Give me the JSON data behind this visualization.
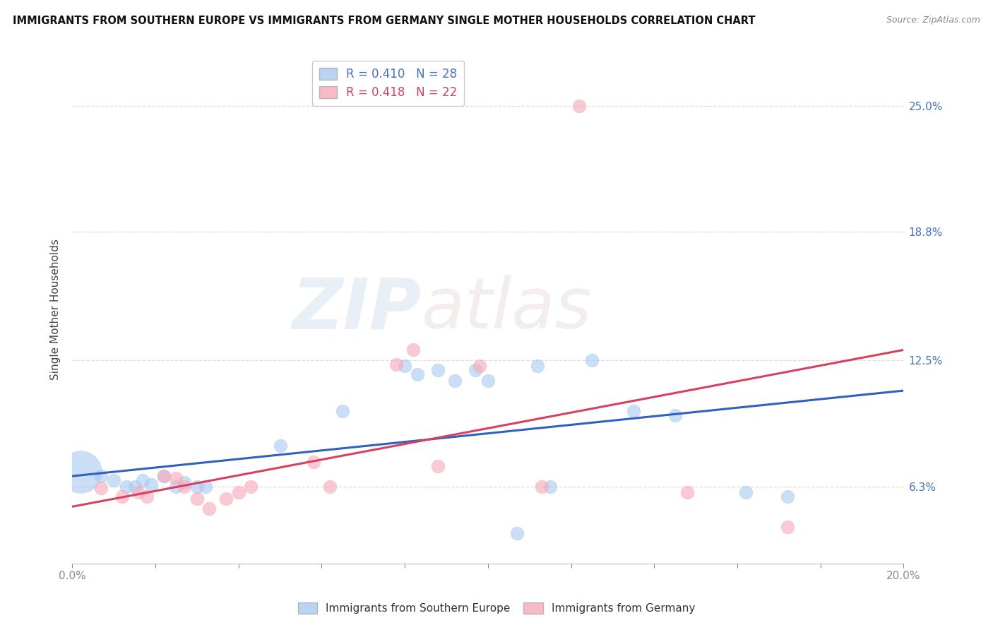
{
  "title": "IMMIGRANTS FROM SOUTHERN EUROPE VS IMMIGRANTS FROM GERMANY SINGLE MOTHER HOUSEHOLDS CORRELATION CHART",
  "source": "Source: ZipAtlas.com",
  "ylabel": "Single Mother Households",
  "ytick_labels": [
    "6.3%",
    "12.5%",
    "18.8%",
    "25.0%"
  ],
  "ytick_values": [
    0.063,
    0.125,
    0.188,
    0.25
  ],
  "xlim": [
    0.0,
    0.2
  ],
  "ylim": [
    0.025,
    0.275
  ],
  "r_blue": 0.41,
  "n_blue": 28,
  "r_pink": 0.418,
  "n_pink": 22,
  "blue_color": "#A8C8F0",
  "pink_color": "#F8A8B8",
  "line_blue": "#3060C0",
  "line_pink": "#D84060",
  "legend_blue": "Immigrants from Southern Europe",
  "legend_pink": "Immigrants from Germany",
  "blue_points": [
    [
      0.002,
      0.07,
      16
    ],
    [
      0.007,
      0.068,
      5
    ],
    [
      0.01,
      0.066,
      5
    ],
    [
      0.013,
      0.063,
      5
    ],
    [
      0.015,
      0.063,
      5
    ],
    [
      0.017,
      0.066,
      5
    ],
    [
      0.019,
      0.064,
      5
    ],
    [
      0.022,
      0.068,
      5
    ],
    [
      0.025,
      0.063,
      5
    ],
    [
      0.027,
      0.065,
      5
    ],
    [
      0.03,
      0.063,
      5
    ],
    [
      0.032,
      0.063,
      5
    ],
    [
      0.05,
      0.083,
      5
    ],
    [
      0.065,
      0.1,
      5
    ],
    [
      0.08,
      0.122,
      5
    ],
    [
      0.083,
      0.118,
      5
    ],
    [
      0.088,
      0.12,
      5
    ],
    [
      0.092,
      0.115,
      5
    ],
    [
      0.097,
      0.12,
      5
    ],
    [
      0.1,
      0.115,
      5
    ],
    [
      0.107,
      0.04,
      5
    ],
    [
      0.112,
      0.122,
      5
    ],
    [
      0.115,
      0.063,
      5
    ],
    [
      0.125,
      0.125,
      5
    ],
    [
      0.135,
      0.1,
      5
    ],
    [
      0.145,
      0.098,
      5
    ],
    [
      0.162,
      0.06,
      5
    ],
    [
      0.172,
      0.058,
      5
    ]
  ],
  "pink_points": [
    [
      0.007,
      0.062,
      5
    ],
    [
      0.012,
      0.058,
      5
    ],
    [
      0.016,
      0.06,
      5
    ],
    [
      0.018,
      0.058,
      5
    ],
    [
      0.022,
      0.068,
      5
    ],
    [
      0.025,
      0.067,
      5
    ],
    [
      0.027,
      0.063,
      5
    ],
    [
      0.03,
      0.057,
      5
    ],
    [
      0.033,
      0.052,
      5
    ],
    [
      0.037,
      0.057,
      5
    ],
    [
      0.04,
      0.06,
      5
    ],
    [
      0.043,
      0.063,
      5
    ],
    [
      0.058,
      0.075,
      5
    ],
    [
      0.062,
      0.063,
      5
    ],
    [
      0.078,
      0.123,
      5
    ],
    [
      0.082,
      0.13,
      5
    ],
    [
      0.088,
      0.073,
      5
    ],
    [
      0.098,
      0.122,
      5
    ],
    [
      0.113,
      0.063,
      5
    ],
    [
      0.148,
      0.06,
      5
    ],
    [
      0.172,
      0.043,
      5
    ],
    [
      0.122,
      0.25,
      5
    ]
  ],
  "blue_line_x": [
    0.0,
    0.2
  ],
  "blue_line_y": [
    0.068,
    0.11
  ],
  "pink_line_x": [
    0.0,
    0.2
  ],
  "pink_line_y": [
    0.053,
    0.13
  ],
  "watermark_zip": "ZIP",
  "watermark_atlas": "atlas",
  "background_color": "#FFFFFF",
  "grid_color": "#DDDDDD",
  "xtick_left_label": "0.0%",
  "xtick_right_label": "20.0%",
  "xtick_count": 10
}
